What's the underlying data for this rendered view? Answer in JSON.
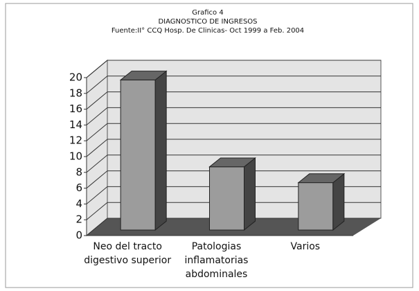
{
  "chart_data": {
    "type": "bar3d",
    "title": "Grafico 4",
    "subtitle": "DIAGNOSTICO DE INGRESOS",
    "source": "Fuente:II° CCQ Hosp. De Clinicas- Oct 1999 a Feb. 2004",
    "categories": [
      "Neo del tracto digestivo superior",
      "Patologias inflamatorias abdominales",
      "Varios"
    ],
    "values": [
      19,
      8,
      6
    ],
    "color": "#9c9c9c",
    "ylim": [
      0,
      20
    ],
    "yticks": [
      0,
      2,
      4,
      6,
      8,
      10,
      12,
      14,
      16,
      18,
      20
    ],
    "grid": true
  }
}
